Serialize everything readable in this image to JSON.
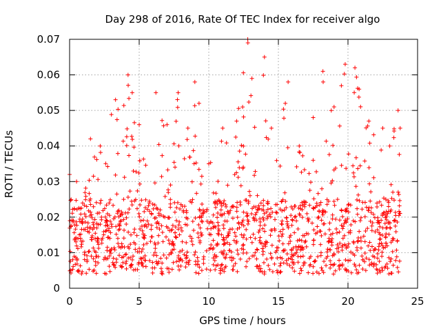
{
  "chart_data": {
    "type": "scatter",
    "title": "Day 298 of 2016, Rate Of TEC Index for receiver algo",
    "xlabel": "GPS time / hours",
    "ylabel": "ROTI / TECUs",
    "xlim": [
      0,
      25
    ],
    "ylim": [
      0,
      0.07
    ],
    "xticks": [
      "0",
      "5",
      "10",
      "15",
      "20",
      "25"
    ],
    "yticks": [
      "0",
      "0.01",
      "0.02",
      "0.03",
      "0.04",
      "0.05",
      "0.06",
      "0.07"
    ],
    "xtick_values": [
      0,
      5,
      10,
      15,
      20,
      25
    ],
    "ytick_values": [
      0,
      0.01,
      0.02,
      0.03,
      0.04,
      0.05,
      0.06,
      0.07
    ],
    "grid": true,
    "marker": "plus",
    "color": "#ff0000",
    "data_extent_x": [
      0,
      23.75
    ],
    "typical_band_y": [
      0.004,
      0.025
    ],
    "envelope": [
      {
        "x": 0.0,
        "max": 0.032
      },
      {
        "x": 0.5,
        "max": 0.03
      },
      {
        "x": 1.5,
        "max": 0.042
      },
      {
        "x": 2.2,
        "max": 0.04
      },
      {
        "x": 3.3,
        "max": 0.053
      },
      {
        "x": 4.2,
        "max": 0.06
      },
      {
        "x": 4.5,
        "max": 0.055
      },
      {
        "x": 5.0,
        "max": 0.046
      },
      {
        "x": 6.2,
        "max": 0.055
      },
      {
        "x": 7.0,
        "max": 0.046
      },
      {
        "x": 7.8,
        "max": 0.055
      },
      {
        "x": 8.5,
        "max": 0.045
      },
      {
        "x": 9.0,
        "max": 0.058
      },
      {
        "x": 9.3,
        "max": 0.052
      },
      {
        "x": 9.6,
        "max": 0.022
      },
      {
        "x": 10.0,
        "max": 0.035
      },
      {
        "x": 11.0,
        "max": 0.045
      },
      {
        "x": 12.0,
        "max": 0.047
      },
      {
        "x": 12.8,
        "max": 0.07
      },
      {
        "x": 13.1,
        "max": 0.059
      },
      {
        "x": 14.0,
        "max": 0.065
      },
      {
        "x": 14.5,
        "max": 0.045
      },
      {
        "x": 15.5,
        "max": 0.052
      },
      {
        "x": 15.7,
        "max": 0.058
      },
      {
        "x": 16.5,
        "max": 0.04
      },
      {
        "x": 17.5,
        "max": 0.048
      },
      {
        "x": 18.2,
        "max": 0.061
      },
      {
        "x": 19.0,
        "max": 0.051
      },
      {
        "x": 19.8,
        "max": 0.063
      },
      {
        "x": 20.5,
        "max": 0.062
      },
      {
        "x": 20.8,
        "max": 0.056
      },
      {
        "x": 21.5,
        "max": 0.047
      },
      {
        "x": 22.5,
        "max": 0.045
      },
      {
        "x": 23.0,
        "max": 0.04
      },
      {
        "x": 23.6,
        "max": 0.05
      },
      {
        "x": 23.75,
        "max": 0.045
      }
    ]
  }
}
